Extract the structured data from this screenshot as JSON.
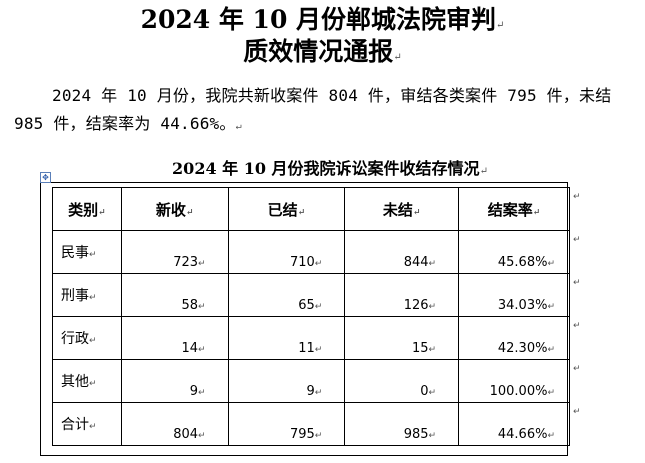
{
  "title": {
    "line1": "2024 年 10 月份郸城法院审判",
    "line2": "质效情况通报"
  },
  "paragraph_mark": "↵",
  "summary": {
    "text": "2024 年 10 月份，我院共新收案件 804 件，审结各类案件 795 件，未结 985 件，结案率为 44.66%。"
  },
  "table_anchor_icon": "move-handle-icon",
  "table_anchor_glyph": "✥",
  "table": {
    "title": "2024 年 10 月份我院诉讼案件收结存情况",
    "headers": [
      "类别",
      "新收",
      "已结",
      "未结",
      "结案率"
    ],
    "rows": [
      [
        "民事",
        "723",
        "710",
        "844",
        "45.68%"
      ],
      [
        "刑事",
        "58",
        "65",
        "126",
        "34.03%"
      ],
      [
        "行政",
        "14",
        "11",
        "15",
        "42.30%"
      ],
      [
        "其他",
        "9",
        "9",
        "0",
        "100.00%"
      ],
      [
        "合计",
        "804",
        "795",
        "985",
        "44.66%"
      ]
    ]
  }
}
